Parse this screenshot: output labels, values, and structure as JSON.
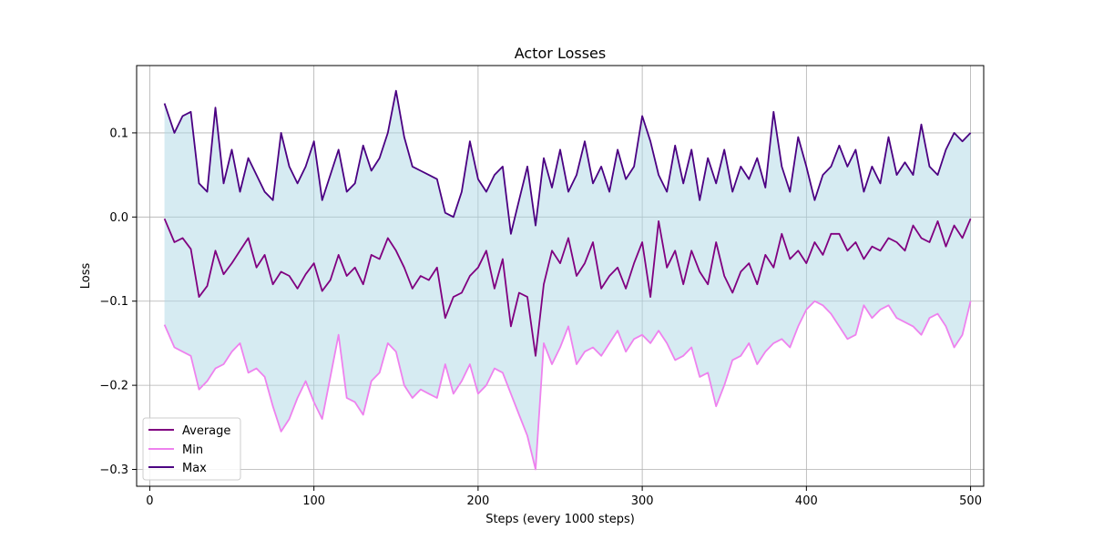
{
  "chart_data": {
    "type": "line",
    "title": "Actor Losses",
    "xlabel": "Steps (every 1000 steps)",
    "ylabel": "Loss",
    "xlim": [
      -8,
      508
    ],
    "ylim": [
      -0.32,
      0.18
    ],
    "xticks": [
      0,
      100,
      200,
      300,
      400,
      500
    ],
    "yticks": [
      -0.3,
      -0.2,
      -0.1,
      0.0,
      0.1
    ],
    "xtick_labels": [
      "0",
      "100",
      "200",
      "300",
      "400",
      "500"
    ],
    "ytick_labels": [
      "−0.3",
      "−0.2",
      "−0.1",
      "0.0",
      "0.1"
    ],
    "grid": true,
    "legend_position": "lower-left",
    "fill_between": {
      "lower": "Min",
      "upper": "Max",
      "color": "#add8e6"
    },
    "x": [
      9,
      15,
      20,
      25,
      30,
      35,
      40,
      45,
      50,
      55,
      60,
      65,
      70,
      75,
      80,
      85,
      90,
      95,
      100,
      105,
      110,
      115,
      120,
      125,
      130,
      135,
      140,
      145,
      150,
      155,
      160,
      165,
      170,
      175,
      180,
      185,
      190,
      195,
      200,
      205,
      210,
      215,
      220,
      225,
      230,
      235,
      240,
      245,
      250,
      255,
      260,
      265,
      270,
      275,
      280,
      285,
      290,
      295,
      300,
      305,
      310,
      315,
      320,
      325,
      330,
      335,
      340,
      345,
      350,
      355,
      360,
      365,
      370,
      375,
      380,
      385,
      390,
      395,
      400,
      405,
      410,
      415,
      420,
      425,
      430,
      435,
      440,
      445,
      450,
      455,
      460,
      465,
      470,
      475,
      480,
      485,
      490,
      495,
      500
    ],
    "series": [
      {
        "name": "Average",
        "color": "#800080",
        "values": [
          -0.002,
          -0.03,
          -0.025,
          -0.038,
          -0.095,
          -0.082,
          -0.04,
          -0.068,
          -0.055,
          -0.04,
          -0.025,
          -0.06,
          -0.045,
          -0.08,
          -0.065,
          -0.07,
          -0.085,
          -0.068,
          -0.055,
          -0.088,
          -0.075,
          -0.045,
          -0.07,
          -0.06,
          -0.08,
          -0.045,
          -0.05,
          -0.025,
          -0.04,
          -0.06,
          -0.085,
          -0.07,
          -0.075,
          -0.06,
          -0.12,
          -0.095,
          -0.09,
          -0.07,
          -0.06,
          -0.04,
          -0.085,
          -0.05,
          -0.13,
          -0.09,
          -0.095,
          -0.165,
          -0.08,
          -0.04,
          -0.055,
          -0.025,
          -0.07,
          -0.055,
          -0.03,
          -0.085,
          -0.07,
          -0.06,
          -0.085,
          -0.055,
          -0.03,
          -0.095,
          -0.005,
          -0.06,
          -0.04,
          -0.08,
          -0.04,
          -0.065,
          -0.08,
          -0.03,
          -0.07,
          -0.09,
          -0.065,
          -0.055,
          -0.08,
          -0.045,
          -0.06,
          -0.02,
          -0.05,
          -0.04,
          -0.055,
          -0.03,
          -0.045,
          -0.02,
          -0.02,
          -0.04,
          -0.03,
          -0.05,
          -0.035,
          -0.04,
          -0.025,
          -0.03,
          -0.04,
          -0.01,
          -0.025,
          -0.03,
          -0.005,
          -0.035,
          -0.01,
          -0.025,
          -0.002
        ]
      },
      {
        "name": "Min",
        "color": "#ee82ee",
        "values": [
          -0.128,
          -0.155,
          -0.16,
          -0.165,
          -0.205,
          -0.195,
          -0.18,
          -0.175,
          -0.16,
          -0.15,
          -0.185,
          -0.18,
          -0.19,
          -0.225,
          -0.255,
          -0.24,
          -0.215,
          -0.195,
          -0.22,
          -0.24,
          -0.19,
          -0.14,
          -0.215,
          -0.22,
          -0.235,
          -0.195,
          -0.185,
          -0.15,
          -0.16,
          -0.2,
          -0.215,
          -0.205,
          -0.21,
          -0.215,
          -0.175,
          -0.21,
          -0.195,
          -0.175,
          -0.21,
          -0.2,
          -0.18,
          -0.185,
          -0.21,
          -0.235,
          -0.26,
          -0.3,
          -0.15,
          -0.175,
          -0.155,
          -0.13,
          -0.175,
          -0.16,
          -0.155,
          -0.165,
          -0.15,
          -0.135,
          -0.16,
          -0.145,
          -0.14,
          -0.15,
          -0.135,
          -0.15,
          -0.17,
          -0.165,
          -0.155,
          -0.19,
          -0.185,
          -0.225,
          -0.2,
          -0.17,
          -0.165,
          -0.15,
          -0.175,
          -0.16,
          -0.15,
          -0.145,
          -0.155,
          -0.13,
          -0.11,
          -0.1,
          -0.105,
          -0.115,
          -0.13,
          -0.145,
          -0.14,
          -0.105,
          -0.12,
          -0.11,
          -0.105,
          -0.12,
          -0.125,
          -0.13,
          -0.14,
          -0.12,
          -0.115,
          -0.13,
          -0.155,
          -0.14,
          -0.1
        ]
      },
      {
        "name": "Max",
        "color": "#4b0082",
        "values": [
          0.135,
          0.1,
          0.12,
          0.125,
          0.04,
          0.03,
          0.13,
          0.04,
          0.08,
          0.03,
          0.07,
          0.05,
          0.03,
          0.02,
          0.1,
          0.06,
          0.04,
          0.06,
          0.09,
          0.02,
          0.05,
          0.08,
          0.03,
          0.04,
          0.085,
          0.055,
          0.07,
          0.1,
          0.15,
          0.095,
          0.06,
          0.055,
          0.05,
          0.045,
          0.005,
          0.0,
          0.03,
          0.09,
          0.045,
          0.03,
          0.05,
          0.06,
          -0.02,
          0.02,
          0.06,
          -0.01,
          0.07,
          0.035,
          0.08,
          0.03,
          0.05,
          0.09,
          0.04,
          0.06,
          0.03,
          0.08,
          0.045,
          0.06,
          0.12,
          0.09,
          0.05,
          0.03,
          0.085,
          0.04,
          0.08,
          0.02,
          0.07,
          0.04,
          0.08,
          0.03,
          0.06,
          0.045,
          0.07,
          0.035,
          0.125,
          0.06,
          0.03,
          0.095,
          0.06,
          0.02,
          0.05,
          0.06,
          0.085,
          0.06,
          0.08,
          0.03,
          0.06,
          0.04,
          0.095,
          0.05,
          0.065,
          0.05,
          0.11,
          0.06,
          0.05,
          0.08,
          0.1,
          0.09,
          0.1
        ]
      }
    ]
  }
}
